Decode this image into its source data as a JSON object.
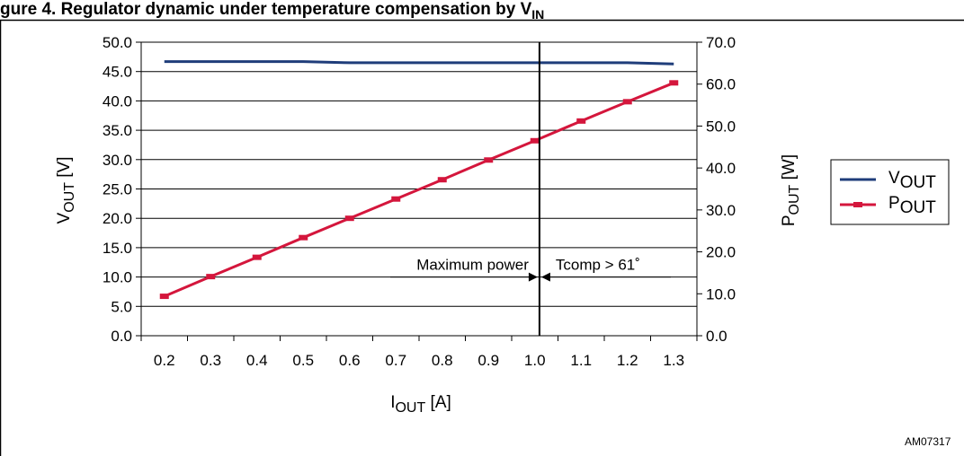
{
  "caption": {
    "text": "gure 4. Regulator dynamic under temperature compensation by V",
    "sub": "IN"
  },
  "figure_id": "AM07317",
  "chart_data": {
    "type": "line",
    "x": [
      0.2,
      0.3,
      0.4,
      0.5,
      0.6,
      0.7,
      0.8,
      0.9,
      1.0,
      1.1,
      1.2,
      1.3
    ],
    "x_tick_labels": [
      "0.2",
      "0.3",
      "0.4",
      "0.5",
      "0.6",
      "0.7",
      "0.8",
      "0.9",
      "1.0",
      "1.1",
      "1.2",
      "1.3"
    ],
    "xlabel": {
      "main": "I",
      "sub": "OUT",
      "unit": " [A]"
    },
    "ylabel_left": {
      "main": "V",
      "sub": "OUT",
      "unit": " [V]"
    },
    "ylabel_right": {
      "main": "P",
      "sub": "OUT",
      "unit": " [W]"
    },
    "ylim_left": [
      0,
      50
    ],
    "ylim_right": [
      0,
      70
    ],
    "y_ticks_left": [
      "0.0",
      "5.0",
      "10.0",
      "15.0",
      "20.0",
      "25.0",
      "30.0",
      "35.0",
      "40.0",
      "45.0",
      "50.0"
    ],
    "y_ticks_right": [
      "0.0",
      "10.0",
      "20.0",
      "30.0",
      "40.0",
      "50.0",
      "60.0",
      "70.0"
    ],
    "grid": true,
    "legend_position": "right",
    "series": [
      {
        "name_main": "V",
        "name_sub": "OUT",
        "axis": "left",
        "color": "#1f3d7a",
        "values": [
          46.7,
          46.7,
          46.7,
          46.7,
          46.5,
          46.5,
          46.5,
          46.5,
          46.5,
          46.5,
          46.5,
          46.3
        ]
      },
      {
        "name_main": "P",
        "name_sub": "OUT",
        "axis": "right",
        "color": "#d4163c",
        "values": [
          9.4,
          14.1,
          18.7,
          23.4,
          28.0,
          32.6,
          37.2,
          41.9,
          46.5,
          51.2,
          55.8,
          60.3
        ]
      }
    ],
    "annotations": {
      "divider_x": 1.01,
      "left_label": "Maximum power",
      "right_label": "Tcomp > 61˚",
      "arrow_level_left": 10.0
    }
  }
}
